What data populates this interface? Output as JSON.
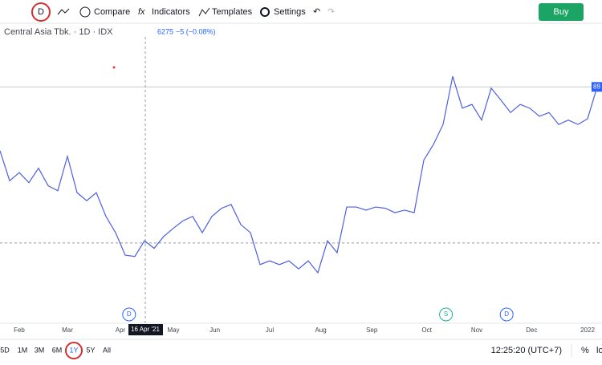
{
  "toolbar": {
    "interval": "D",
    "compare": "Compare",
    "indicators": "Indicators",
    "templates": "Templates",
    "settings": "Settings",
    "buy": "Buy"
  },
  "legend": {
    "symbol": "Central Asia Tbk. · 1D · IDX",
    "price": 6275,
    "change": "−5 (−0.08%)"
  },
  "chart_data": {
    "type": "line",
    "color": "#4c5fe0",
    "values": [
      7750,
      7270,
      7400,
      7240,
      7470,
      7190,
      7110,
      7660,
      7080,
      6950,
      7080,
      6700,
      6440,
      6080,
      6060,
      6310,
      6190,
      6380,
      6510,
      6630,
      6700,
      6440,
      6700,
      6830,
      6890,
      6570,
      6440,
      5930,
      5990,
      5930,
      5990,
      5860,
      5990,
      5800,
      6310,
      6120,
      6850,
      6850,
      6800,
      6850,
      6830,
      6760,
      6800,
      6760,
      7600,
      7850,
      8170,
      8940,
      8430,
      8490,
      8240,
      8750,
      8560,
      8360,
      8490,
      8430,
      8300,
      8360,
      8170,
      8240,
      8170,
      8260,
      8770
    ],
    "ylim": [
      5030,
      9800
    ],
    "xticks": [
      {
        "value": 2,
        "label": "Feb"
      },
      {
        "value": 7,
        "label": "Mar"
      },
      {
        "value": 12.5,
        "label": "Apr"
      },
      {
        "value": 18,
        "label": "May"
      },
      {
        "value": 22.3,
        "label": "Jun"
      },
      {
        "value": 28,
        "label": "Jul"
      },
      {
        "value": 33.3,
        "label": "Aug"
      },
      {
        "value": 38.6,
        "label": "Sep"
      },
      {
        "value": 44.3,
        "label": "Oct"
      },
      {
        "value": 49.5,
        "label": "Nov"
      },
      {
        "value": 55.2,
        "label": "Dec"
      },
      {
        "value": 61,
        "label": "2022"
      }
    ],
    "last_price_label": "88",
    "crosshair_label": "16 Apr '21",
    "events": [
      {
        "value": 13.4,
        "label": "D"
      },
      {
        "value": 46.3,
        "label": "S"
      },
      {
        "value": 52.6,
        "label": "D"
      }
    ]
  },
  "bottom": {
    "ranges": [
      "5D",
      "1M",
      "3M",
      "6M",
      "1Y",
      "5Y",
      "All"
    ],
    "time": "12:25:20 (UTC+7)",
    "percent": "%",
    "log": "lo"
  }
}
